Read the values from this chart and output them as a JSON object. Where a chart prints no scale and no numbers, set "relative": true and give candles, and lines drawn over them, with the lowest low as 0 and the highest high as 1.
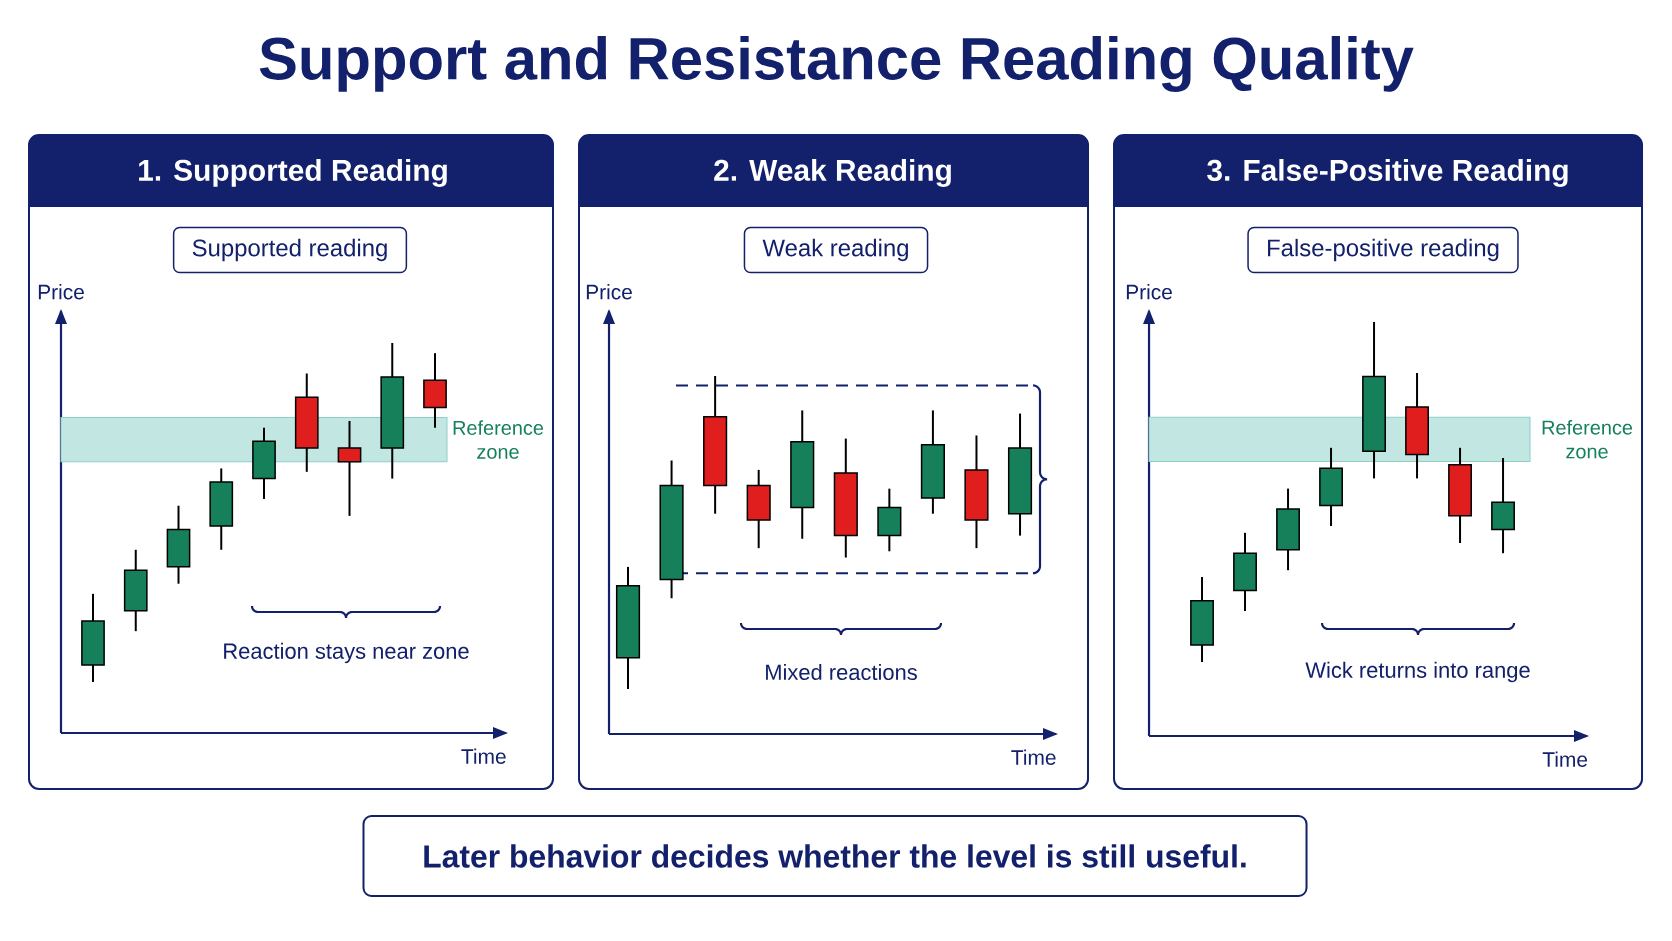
{
  "chart_data": [
    {
      "type": "other",
      "title": "Support and Resistance Reading Quality",
      "annotations": [
        "Later behavior decides whether the level is still useful."
      ]
    },
    {
      "type": "candlestick",
      "title": "1. Supported Reading",
      "subtitle": "Supported reading",
      "xlabel": "Time",
      "ylabel": "Price",
      "relative": true,
      "categories": [
        null,
        null,
        null,
        null,
        null,
        null,
        null,
        null,
        null
      ],
      "ohlc": [
        [
          0.05,
          0.26,
          0,
          0.18
        ],
        [
          0.21,
          0.39,
          0.15,
          0.33
        ],
        [
          0.34,
          0.52,
          0.29,
          0.45
        ],
        [
          0.46,
          0.63,
          0.39,
          0.59
        ],
        [
          0.6,
          0.75,
          0.54,
          0.71
        ],
        [
          0.84,
          0.91,
          0.62,
          0.69
        ],
        [
          0.69,
          0.77,
          0.49,
          0.65
        ],
        [
          0.69,
          1,
          0.6,
          0.9
        ],
        [
          0.89,
          0.97,
          0.75,
          0.81
        ]
      ],
      "colors": [
        "#16805a",
        "#16805a",
        "#16805a",
        "#16805a",
        "#16805a",
        "#e01e1e",
        "#e01e1e",
        "#16805a",
        "#e01e1e"
      ],
      "bands": [
        {
          "axis": "y",
          "from": 0.65,
          "to": 0.78,
          "label": "Reference zone",
          "color": "#c2e6e1"
        }
      ],
      "annotations": [
        "Reaction stays near zone"
      ]
    },
    {
      "type": "candlestick",
      "title": "2. Weak Reading",
      "subtitle": "Weak reading",
      "xlabel": "Time",
      "ylabel": "Price",
      "relative": true,
      "categories": [
        null,
        null,
        null,
        null,
        null,
        null,
        null,
        null,
        null,
        null
      ],
      "ohlc": [
        [
          0.1,
          0.39,
          0,
          0.33
        ],
        [
          0.35,
          0.73,
          0.29,
          0.65
        ],
        [
          0.87,
          1,
          0.56,
          0.65
        ],
        [
          0.65,
          0.7,
          0.45,
          0.54
        ],
        [
          0.58,
          0.89,
          0.48,
          0.79
        ],
        [
          0.69,
          0.8,
          0.42,
          0.49
        ],
        [
          0.49,
          0.64,
          0.44,
          0.58
        ],
        [
          0.61,
          0.89,
          0.56,
          0.78
        ],
        [
          0.7,
          0.81,
          0.45,
          0.54
        ],
        [
          0.56,
          0.88,
          0.49,
          0.77
        ]
      ],
      "colors": [
        "#16805a",
        "#16805a",
        "#e01e1e",
        "#e01e1e",
        "#16805a",
        "#e01e1e",
        "#16805a",
        "#16805a",
        "#e01e1e",
        "#16805a"
      ],
      "ref_lines": [
        {
          "axis": "y",
          "value": 0.97,
          "line_style": "dashed",
          "color": "#13206b"
        },
        {
          "axis": "y",
          "value": 0.37,
          "line_style": "dashed",
          "color": "#13206b"
        }
      ],
      "annotations": [
        "Mixed reactions"
      ]
    },
    {
      "type": "candlestick",
      "title": "3. False-Positive Reading",
      "subtitle": "False-positive reading",
      "xlabel": "Time",
      "ylabel": "Price",
      "relative": true,
      "categories": [
        null,
        null,
        null,
        null,
        null,
        null,
        null,
        null
      ],
      "ohlc": [
        [
          0.05,
          0.25,
          0,
          0.18
        ],
        [
          0.21,
          0.38,
          0.15,
          0.32
        ],
        [
          0.33,
          0.51,
          0.27,
          0.45
        ],
        [
          0.46,
          0.63,
          0.4,
          0.57
        ],
        [
          0.62,
          1,
          0.54,
          0.84
        ],
        [
          0.75,
          0.85,
          0.54,
          0.61
        ],
        [
          0.58,
          0.63,
          0.35,
          0.43
        ],
        [
          0.39,
          0.6,
          0.32,
          0.47
        ]
      ],
      "colors": [
        "#16805a",
        "#16805a",
        "#16805a",
        "#16805a",
        "#16805a",
        "#e01e1e",
        "#e01e1e",
        "#16805a"
      ],
      "bands": [
        {
          "axis": "y",
          "from": 0.59,
          "to": 0.72,
          "label": "Reference zone",
          "color": "#c2e6e1"
        }
      ],
      "annotations": [
        "Wick returns into range"
      ]
    }
  ]
}
